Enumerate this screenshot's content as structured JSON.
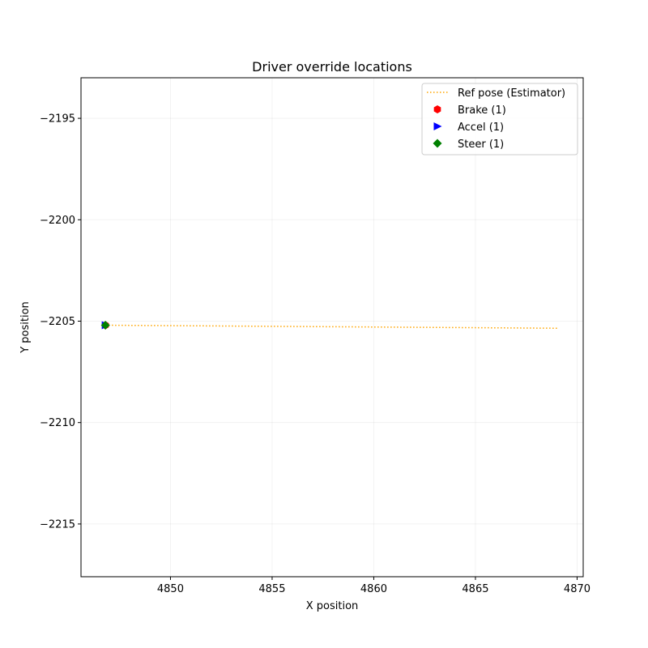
{
  "chart_data": {
    "type": "scatter",
    "title": "Driver override locations",
    "xlabel": "X position",
    "ylabel": "Y position",
    "xlim": [
      4845.6,
      4870.3
    ],
    "ylim": [
      -2217.6,
      -2193.0
    ],
    "xticks": [
      4850,
      4855,
      4860,
      4865,
      4870
    ],
    "yticks": [
      -2195,
      -2200,
      -2205,
      -2210,
      -2215
    ],
    "xtick_labels": [
      "4850",
      "4855",
      "4860",
      "4865",
      "4870"
    ],
    "ytick_labels": [
      "−2195",
      "−2200",
      "−2205",
      "−2210",
      "−2215"
    ],
    "grid": true,
    "legend_placement": "top-right",
    "ref_line": {
      "name": "Ref pose (Estimator)",
      "color": "#ffa500",
      "x": [
        4846.8,
        4869.1
      ],
      "y": [
        -2205.2,
        -2205.35
      ]
    },
    "series": [
      {
        "name": "Brake (1)",
        "marker": "hexagon",
        "color": "#ff0000",
        "x": [
          4846.8
        ],
        "y": [
          -2205.2
        ]
      },
      {
        "name": "Accel (1)",
        "marker": "triangle-right",
        "color": "#0000ff",
        "x": [
          4846.8
        ],
        "y": [
          -2205.2
        ]
      },
      {
        "name": "Steer (1)",
        "marker": "diamond",
        "color": "#008000",
        "x": [
          4846.8
        ],
        "y": [
          -2205.2
        ]
      }
    ]
  }
}
